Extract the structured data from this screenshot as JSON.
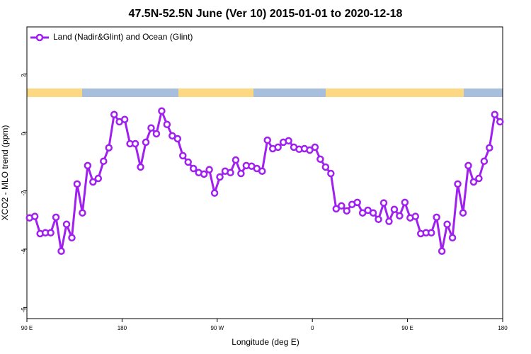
{
  "chart_data": {
    "type": "line",
    "title": "47.5N-52.5N June (Ver 10)   2015-01-01 to 2020-12-18",
    "x_label": "Longitude (deg E)",
    "y_label": "XCO2 - MLO trend (ppm)",
    "xlim": [
      90,
      540
    ],
    "ylim": [
      -6.38,
      3.61
    ],
    "xticks": [
      {
        "value": 90,
        "label": "90 E"
      },
      {
        "value": 180,
        "label": "180"
      },
      {
        "value": 270,
        "label": "90 W"
      },
      {
        "value": 360,
        "label": "0"
      },
      {
        "value": 450,
        "label": "90 E"
      },
      {
        "value": 540,
        "label": "180"
      }
    ],
    "yticks": [
      2,
      0,
      -2,
      -4,
      -6
    ],
    "legend": "top-left",
    "x": [
      92.5,
      97.5,
      102.5,
      107.5,
      112.5,
      117.5,
      122.5,
      127.5,
      132.5,
      137.5,
      142.5,
      147.5,
      152.5,
      157.5,
      162.5,
      167.5,
      172.5,
      177.5,
      182.5,
      187.5,
      192.5,
      197.5,
      202.5,
      207.5,
      212.5,
      217.5,
      222.5,
      227.5,
      232.5,
      237.5,
      242.5,
      247.5,
      252.5,
      257.5,
      262.5,
      267.5,
      272.5,
      277.5,
      282.5,
      287.5,
      292.5,
      297.5,
      302.5,
      307.5,
      312.5,
      317.5,
      322.5,
      327.5,
      332.5,
      337.5,
      342.5,
      347.5,
      352.5,
      357.5,
      362.5,
      367.5,
      372.5,
      377.5,
      382.5,
      387.5,
      392.5,
      397.5,
      402.5,
      407.5,
      412.5,
      417.5,
      422.5,
      427.5,
      432.5,
      437.5,
      442.5,
      447.5,
      452.5,
      457.5,
      462.5,
      467.5,
      472.5,
      477.5,
      482.5,
      487.5,
      492.5,
      497.5,
      502.5,
      507.5,
      512.5,
      517.5,
      522.5,
      527.5,
      532.5,
      537.5
    ],
    "series": [
      {
        "name": "Land (Nadir&Glint) and Ocean (Glint)",
        "color": "#a020f0",
        "values": [
          -2.93,
          -2.88,
          -3.47,
          -3.44,
          -3.44,
          -2.91,
          -4.07,
          -3.15,
          -3.61,
          -1.77,
          -2.76,
          -1.14,
          -1.7,
          -1.58,
          -0.99,
          -0.53,
          0.61,
          0.36,
          0.44,
          -0.39,
          -0.39,
          -1.19,
          -0.34,
          0.15,
          -0.05,
          0.73,
          0.27,
          -0.12,
          -0.22,
          -0.8,
          -1.02,
          -1.24,
          -1.38,
          -1.43,
          -1.28,
          -2.08,
          -1.53,
          -1.33,
          -1.38,
          -0.95,
          -1.41,
          -1.14,
          -1.16,
          -1.24,
          -1.33,
          -0.27,
          -0.56,
          -0.51,
          -0.34,
          -0.29,
          -0.51,
          -0.58,
          -0.56,
          -0.61,
          -0.51,
          -0.92,
          -1.19,
          -1.41,
          -2.62,
          -2.52,
          -2.69,
          -2.47,
          -2.4,
          -2.76,
          -2.67,
          -2.76,
          -2.98,
          -2.42,
          -3.05,
          -2.64,
          -2.86,
          -2.4,
          -2.93,
          -2.88,
          -3.47,
          -3.44,
          -3.44,
          -2.91,
          -4.07,
          -3.15,
          -3.61,
          -1.77,
          -2.76,
          -1.14,
          -1.7,
          -1.58,
          -0.99,
          -0.53,
          0.61,
          0.36
        ]
      }
    ]
  }
}
